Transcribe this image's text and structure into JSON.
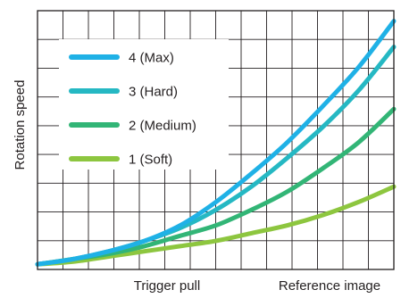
{
  "chart_data": {
    "type": "line",
    "xlabel": "Trigger pull",
    "ylabel": "Rotation speed",
    "note": "Reference image",
    "x": [
      0,
      0.1,
      0.2,
      0.3,
      0.4,
      0.5,
      0.6,
      0.7,
      0.8,
      0.9,
      1.0
    ],
    "xlim": [
      0,
      1
    ],
    "ylim": [
      0,
      1
    ],
    "grid": true,
    "legend_position": "top-left",
    "series": [
      {
        "name": "4 (Max)",
        "color": "#1fb1e6",
        "values": [
          0.02,
          0.04,
          0.07,
          0.11,
          0.17,
          0.26,
          0.37,
          0.49,
          0.63,
          0.78,
          0.96
        ]
      },
      {
        "name": "3 (Hard)",
        "color": "#25b8c3",
        "values": [
          0.02,
          0.04,
          0.07,
          0.11,
          0.16,
          0.23,
          0.32,
          0.43,
          0.55,
          0.69,
          0.86
        ]
      },
      {
        "name": "2 (Medium)",
        "color": "#32b576",
        "values": [
          0.02,
          0.04,
          0.06,
          0.09,
          0.13,
          0.17,
          0.23,
          0.3,
          0.39,
          0.49,
          0.62
        ]
      },
      {
        "name": "1 (Soft)",
        "color": "#8dc63f",
        "values": [
          0.02,
          0.03,
          0.05,
          0.07,
          0.09,
          0.11,
          0.14,
          0.17,
          0.21,
          0.26,
          0.32
        ]
      }
    ]
  }
}
